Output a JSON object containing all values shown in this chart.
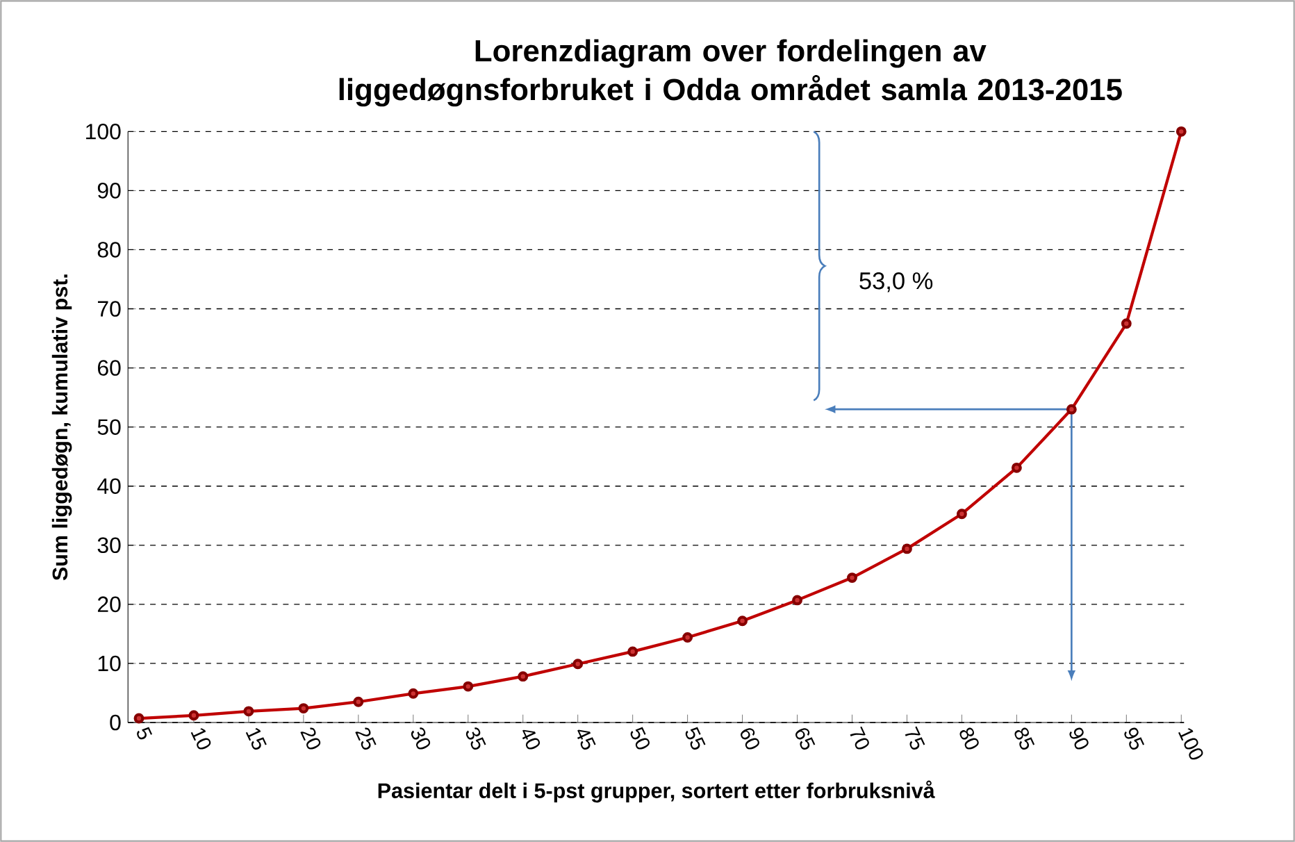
{
  "chart_data": {
    "type": "line",
    "title": "Lorenzdiagram over fordelingen av liggedøgnsforbruket i Odda området samla  2013-2015",
    "xlabel": "Pasientar delt i 5-pst grupper, sortert etter forbruksnivå",
    "ylabel": "Sum liggedøgn,  kumulativ pst.",
    "categories": [
      "5",
      "10",
      "15",
      "20",
      "25",
      "30",
      "35",
      "40",
      "45",
      "50",
      "55",
      "60",
      "65",
      "70",
      "75",
      "80",
      "85",
      "90",
      "95",
      "100"
    ],
    "values": [
      0.7,
      1.2,
      1.9,
      2.4,
      3.5,
      4.9,
      6.1,
      7.8,
      9.9,
      12.0,
      14.4,
      17.2,
      20.7,
      24.5,
      29.4,
      35.3,
      43.1,
      53.0,
      67.5,
      100
    ],
    "color": "#c00000",
    "marker": "circle",
    "line_style": "solid",
    "grid": "y",
    "ylim": [
      0,
      100
    ],
    "yticks": [
      0,
      10,
      20,
      30,
      40,
      50,
      60,
      70,
      80,
      90,
      100
    ],
    "annotations": [
      "53,0 %"
    ]
  }
}
